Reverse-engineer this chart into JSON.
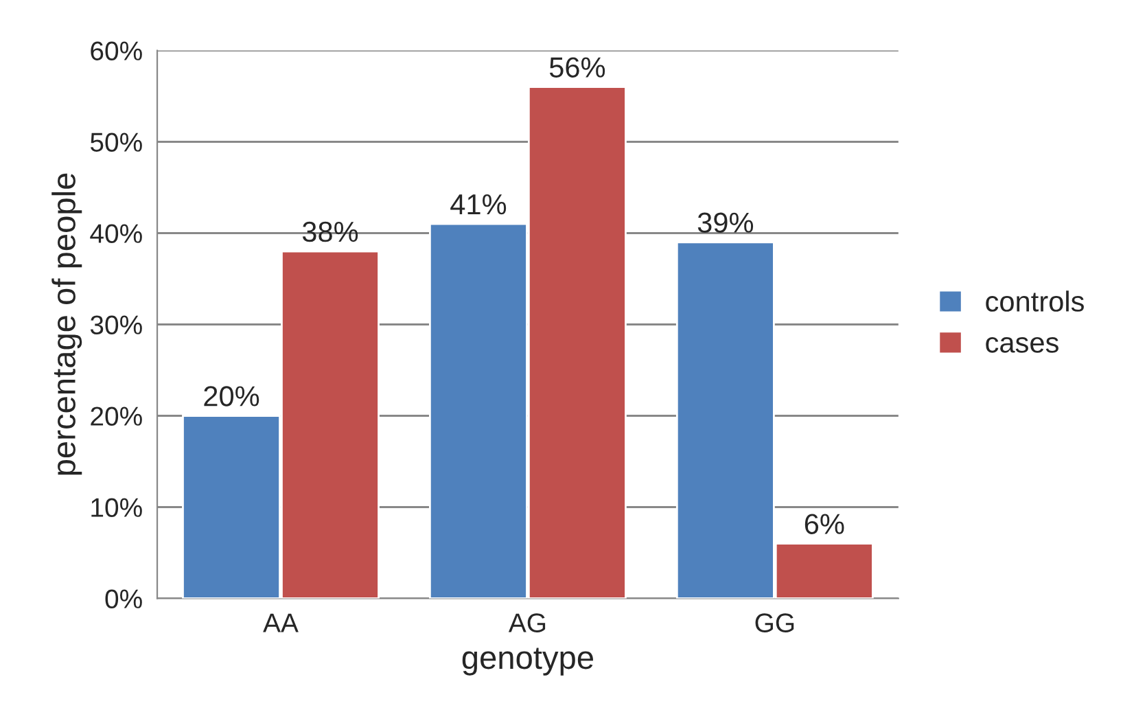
{
  "chart_data": {
    "type": "bar",
    "xlabel": "genotype",
    "ylabel": "percentage of people",
    "categories": [
      "AA",
      "AG",
      "GG"
    ],
    "series": [
      {
        "name": "controls",
        "color": "#4f81bd",
        "values": [
          20,
          41,
          39
        ],
        "value_labels": [
          "20%",
          "41%",
          "39%"
        ]
      },
      {
        "name": "cases",
        "color": "#c0504d",
        "values": [
          38,
          56,
          6
        ],
        "value_labels": [
          "38%",
          "56%",
          "6%"
        ]
      }
    ],
    "ylim": [
      0,
      60
    ],
    "yticks": [
      {
        "value": 0,
        "label": "0%"
      },
      {
        "value": 10,
        "label": "10%"
      },
      {
        "value": 20,
        "label": "20%"
      },
      {
        "value": 30,
        "label": "30%"
      },
      {
        "value": 40,
        "label": "40%"
      },
      {
        "value": 50,
        "label": "50%"
      },
      {
        "value": 60,
        "label": "60%"
      }
    ],
    "grid": "y",
    "legend": "right"
  }
}
